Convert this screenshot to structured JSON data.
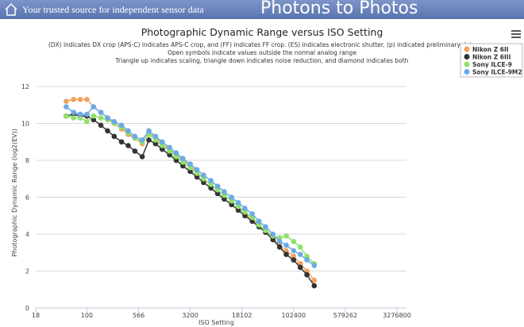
{
  "header": {
    "tagline": "Your trusted source for independent sensor data",
    "site_title": "Photons to Photos"
  },
  "chart_data": {
    "type": "line",
    "title": "Photographic Dynamic Range versus ISO Setting",
    "subtitle": [
      "(DX) indicates DX crop (APS-C) indicates APS-C crop, and (FF) indicates FF crop. (ES) indicates electronic shutter. (p) indicated preliminary data",
      "Open symbols indicate values outside the normal analog range",
      "Triangle up indicates scaling, triangle down indicates noise reduction, and diamond indicates both"
    ],
    "x_label": "ISO Setting",
    "y_label": "Photographic Dynamic Range (log2(EV))",
    "x_scale": "log",
    "x": [
      50,
      64,
      80,
      100,
      125,
      160,
      200,
      250,
      320,
      400,
      500,
      640,
      800,
      1000,
      1250,
      1600,
      2000,
      2500,
      3200,
      4000,
      5000,
      6400,
      8000,
      10000,
      12800,
      16000,
      20000,
      25600,
      32000,
      40000,
      51200,
      64000,
      80000,
      102400,
      128000,
      160000,
      204800
    ],
    "series": [
      {
        "name": "Nikon Z 6II",
        "color": "#f2a25e",
        "values": [
          11.2,
          11.3,
          11.3,
          11.3,
          10.9,
          10.6,
          10.3,
          10.0,
          9.7,
          9.4,
          9.2,
          8.9,
          9.5,
          9.2,
          8.9,
          8.6,
          8.3,
          8.0,
          7.7,
          7.4,
          7.0,
          6.7,
          6.4,
          6.1,
          5.8,
          5.5,
          5.1,
          4.8,
          4.5,
          4.2,
          3.8,
          3.4,
          3.1,
          2.8,
          2.4,
          2.0,
          1.5
        ]
      },
      {
        "name": "Nikon Z 6III",
        "color": "#333333",
        "values": [
          10.4,
          10.5,
          10.4,
          10.4,
          10.2,
          9.9,
          9.6,
          9.3,
          9.0,
          8.8,
          8.5,
          8.2,
          9.1,
          8.9,
          8.6,
          8.3,
          8.0,
          7.7,
          7.4,
          7.1,
          6.8,
          6.5,
          6.2,
          5.9,
          5.6,
          5.3,
          5.0,
          4.7,
          4.4,
          4.1,
          3.7,
          3.3,
          2.9,
          2.6,
          2.2,
          1.8,
          1.2
        ]
      },
      {
        "name": "Sony ILCE-9",
        "color": "#8fe06c",
        "values": [
          10.4,
          10.3,
          10.3,
          10.1,
          10.4,
          10.3,
          10.2,
          10.0,
          9.8,
          9.5,
          9.2,
          9.0,
          9.4,
          9.1,
          8.8,
          8.5,
          8.2,
          7.9,
          7.6,
          7.3,
          7.0,
          6.7,
          6.4,
          6.1,
          5.8,
          5.5,
          5.2,
          4.9,
          4.5,
          4.2,
          3.9,
          3.8,
          3.9,
          3.6,
          3.3,
          2.8,
          2.4
        ]
      },
      {
        "name": "Sony ILCE-9M2",
        "color": "#6aaae8",
        "values": [
          10.9,
          10.6,
          10.5,
          10.5,
          10.9,
          10.6,
          10.3,
          10.1,
          9.9,
          9.6,
          9.3,
          9.1,
          9.6,
          9.3,
          9.0,
          8.7,
          8.4,
          8.1,
          7.8,
          7.5,
          7.2,
          6.9,
          6.6,
          6.3,
          6.0,
          5.7,
          5.4,
          5.1,
          4.7,
          4.4,
          4.0,
          3.6,
          3.4,
          3.1,
          2.9,
          2.6,
          2.3
        ]
      }
    ],
    "xlim": [
      18,
      3276800
    ],
    "xticks": [
      18,
      100,
      566,
      3200,
      18102,
      102400,
      579262,
      3276800
    ],
    "ylim": [
      0,
      12.5
    ],
    "yticks": [
      0,
      2,
      4,
      6,
      8,
      10,
      12
    ],
    "grid": true,
    "legend": "top-right"
  }
}
